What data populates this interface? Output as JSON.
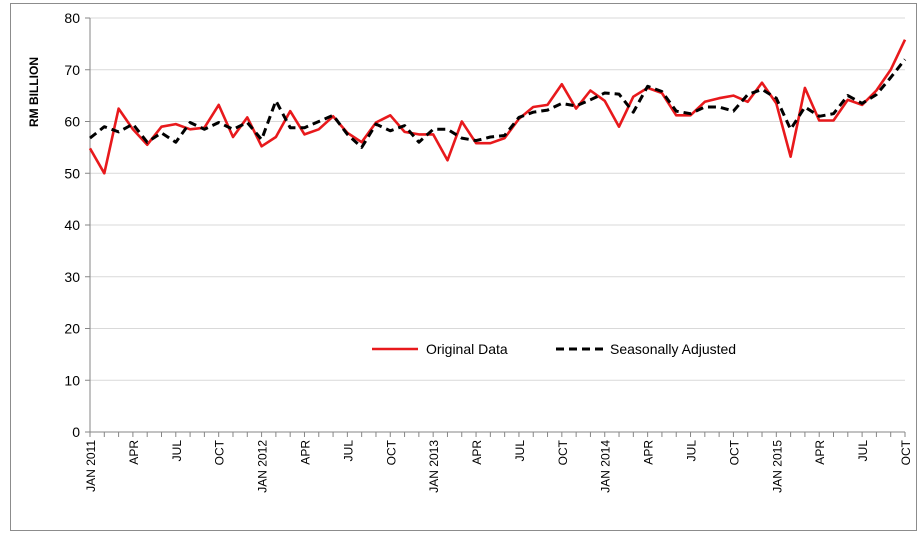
{
  "chart_data": {
    "type": "line",
    "title": "",
    "xlabel": "",
    "ylabel": "RM BILLION",
    "ylim": [
      0,
      80
    ],
    "yticks": [
      0,
      10,
      20,
      30,
      40,
      50,
      60,
      70,
      80
    ],
    "grid": true,
    "legend_position": "center",
    "x_start": "JAN 2011",
    "x_end": "OCT 2015",
    "xtick_labels": [
      "JAN 2011",
      "APR",
      "JUL",
      "OCT",
      "JAN 2012",
      "APR",
      "JUL",
      "OCT",
      "JAN 2013",
      "APR",
      "JUL",
      "OCT",
      "JAN 2014",
      "APR",
      "JUL",
      "OCT",
      "JAN 2015",
      "APR",
      "JUL",
      "OCT"
    ],
    "series": [
      {
        "name": "Original Data",
        "color": "#e8191c",
        "style": "solid",
        "values": [
          54.8,
          50.0,
          62.5,
          58.5,
          55.5,
          59.0,
          59.5,
          58.5,
          58.8,
          63.2,
          57.0,
          60.8,
          55.2,
          57.0,
          62.0,
          57.5,
          58.5,
          61.0,
          57.8,
          56.0,
          59.8,
          61.2,
          58.0,
          57.5,
          57.5,
          52.5,
          60.0,
          55.8,
          55.8,
          56.8,
          60.5,
          62.8,
          63.2,
          67.2,
          62.5,
          66.0,
          64.0,
          59.0,
          64.8,
          66.5,
          65.5,
          61.2,
          61.2,
          63.8,
          64.5,
          65.0,
          63.8,
          67.5,
          63.5,
          53.2,
          66.5,
          60.2,
          60.2,
          64.2,
          63.2,
          66.0,
          70.0,
          75.8
        ]
      },
      {
        "name": "Seasonally Adjusted",
        "color": "#000000",
        "style": "dashed",
        "values": [
          56.8,
          59.0,
          58.0,
          59.5,
          56.0,
          57.8,
          56.0,
          59.8,
          58.5,
          59.8,
          58.5,
          59.8,
          56.5,
          64.0,
          58.8,
          58.8,
          60.0,
          61.2,
          57.5,
          55.0,
          59.5,
          58.2,
          59.2,
          56.0,
          58.5,
          58.5,
          56.8,
          56.3,
          57.0,
          57.3,
          60.8,
          61.8,
          62.2,
          63.5,
          63.0,
          64.2,
          65.5,
          65.3,
          61.8,
          66.8,
          65.8,
          62.0,
          61.5,
          62.8,
          62.8,
          62.0,
          65.2,
          66.2,
          64.5,
          58.5,
          62.8,
          61.0,
          61.5,
          65.0,
          63.5,
          65.2,
          68.5,
          72.0
        ]
      }
    ]
  }
}
